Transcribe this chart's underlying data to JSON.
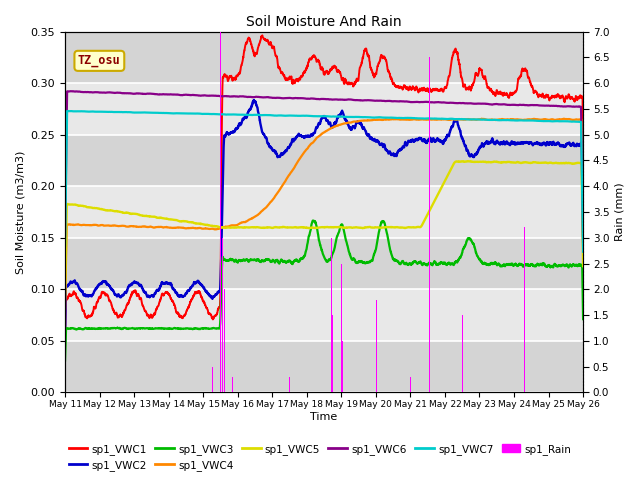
{
  "title": "Soil Moisture And Rain",
  "xlabel": "Time",
  "ylabel_left": "Soil Moisture (m3/m3)",
  "ylabel_right": "Rain (mm)",
  "annotation": "TZ_osu",
  "ylim_left": [
    0.0,
    0.35
  ],
  "ylim_right": [
    0.0,
    7.0
  ],
  "yticks_left": [
    0.0,
    0.05,
    0.1,
    0.15,
    0.2,
    0.25,
    0.3,
    0.35
  ],
  "yticks_right": [
    0.0,
    0.5,
    1.0,
    1.5,
    2.0,
    2.5,
    3.0,
    3.5,
    4.0,
    4.5,
    5.0,
    5.5,
    6.0,
    6.5,
    7.0
  ],
  "xtick_labels": [
    "May 11",
    "May 12",
    "May 13",
    "May 14",
    "May 15",
    "May 16",
    "May 17",
    "May 18",
    "May 19",
    "May 20",
    "May 21",
    "May 22",
    "May 23",
    "May 24",
    "May 25",
    "May 26"
  ],
  "colors": {
    "VWC1": "#ff0000",
    "VWC2": "#0000cc",
    "VWC3": "#00bb00",
    "VWC4": "#ff8800",
    "VWC5": "#dddd00",
    "VWC6": "#880088",
    "VWC7": "#00cccc",
    "Rain": "#ff00ff"
  },
  "background_color": "#e0e0e0",
  "grid_color": "#ffffff",
  "bg_band_colors": [
    "#d8d8d8",
    "#e8e8e8"
  ]
}
